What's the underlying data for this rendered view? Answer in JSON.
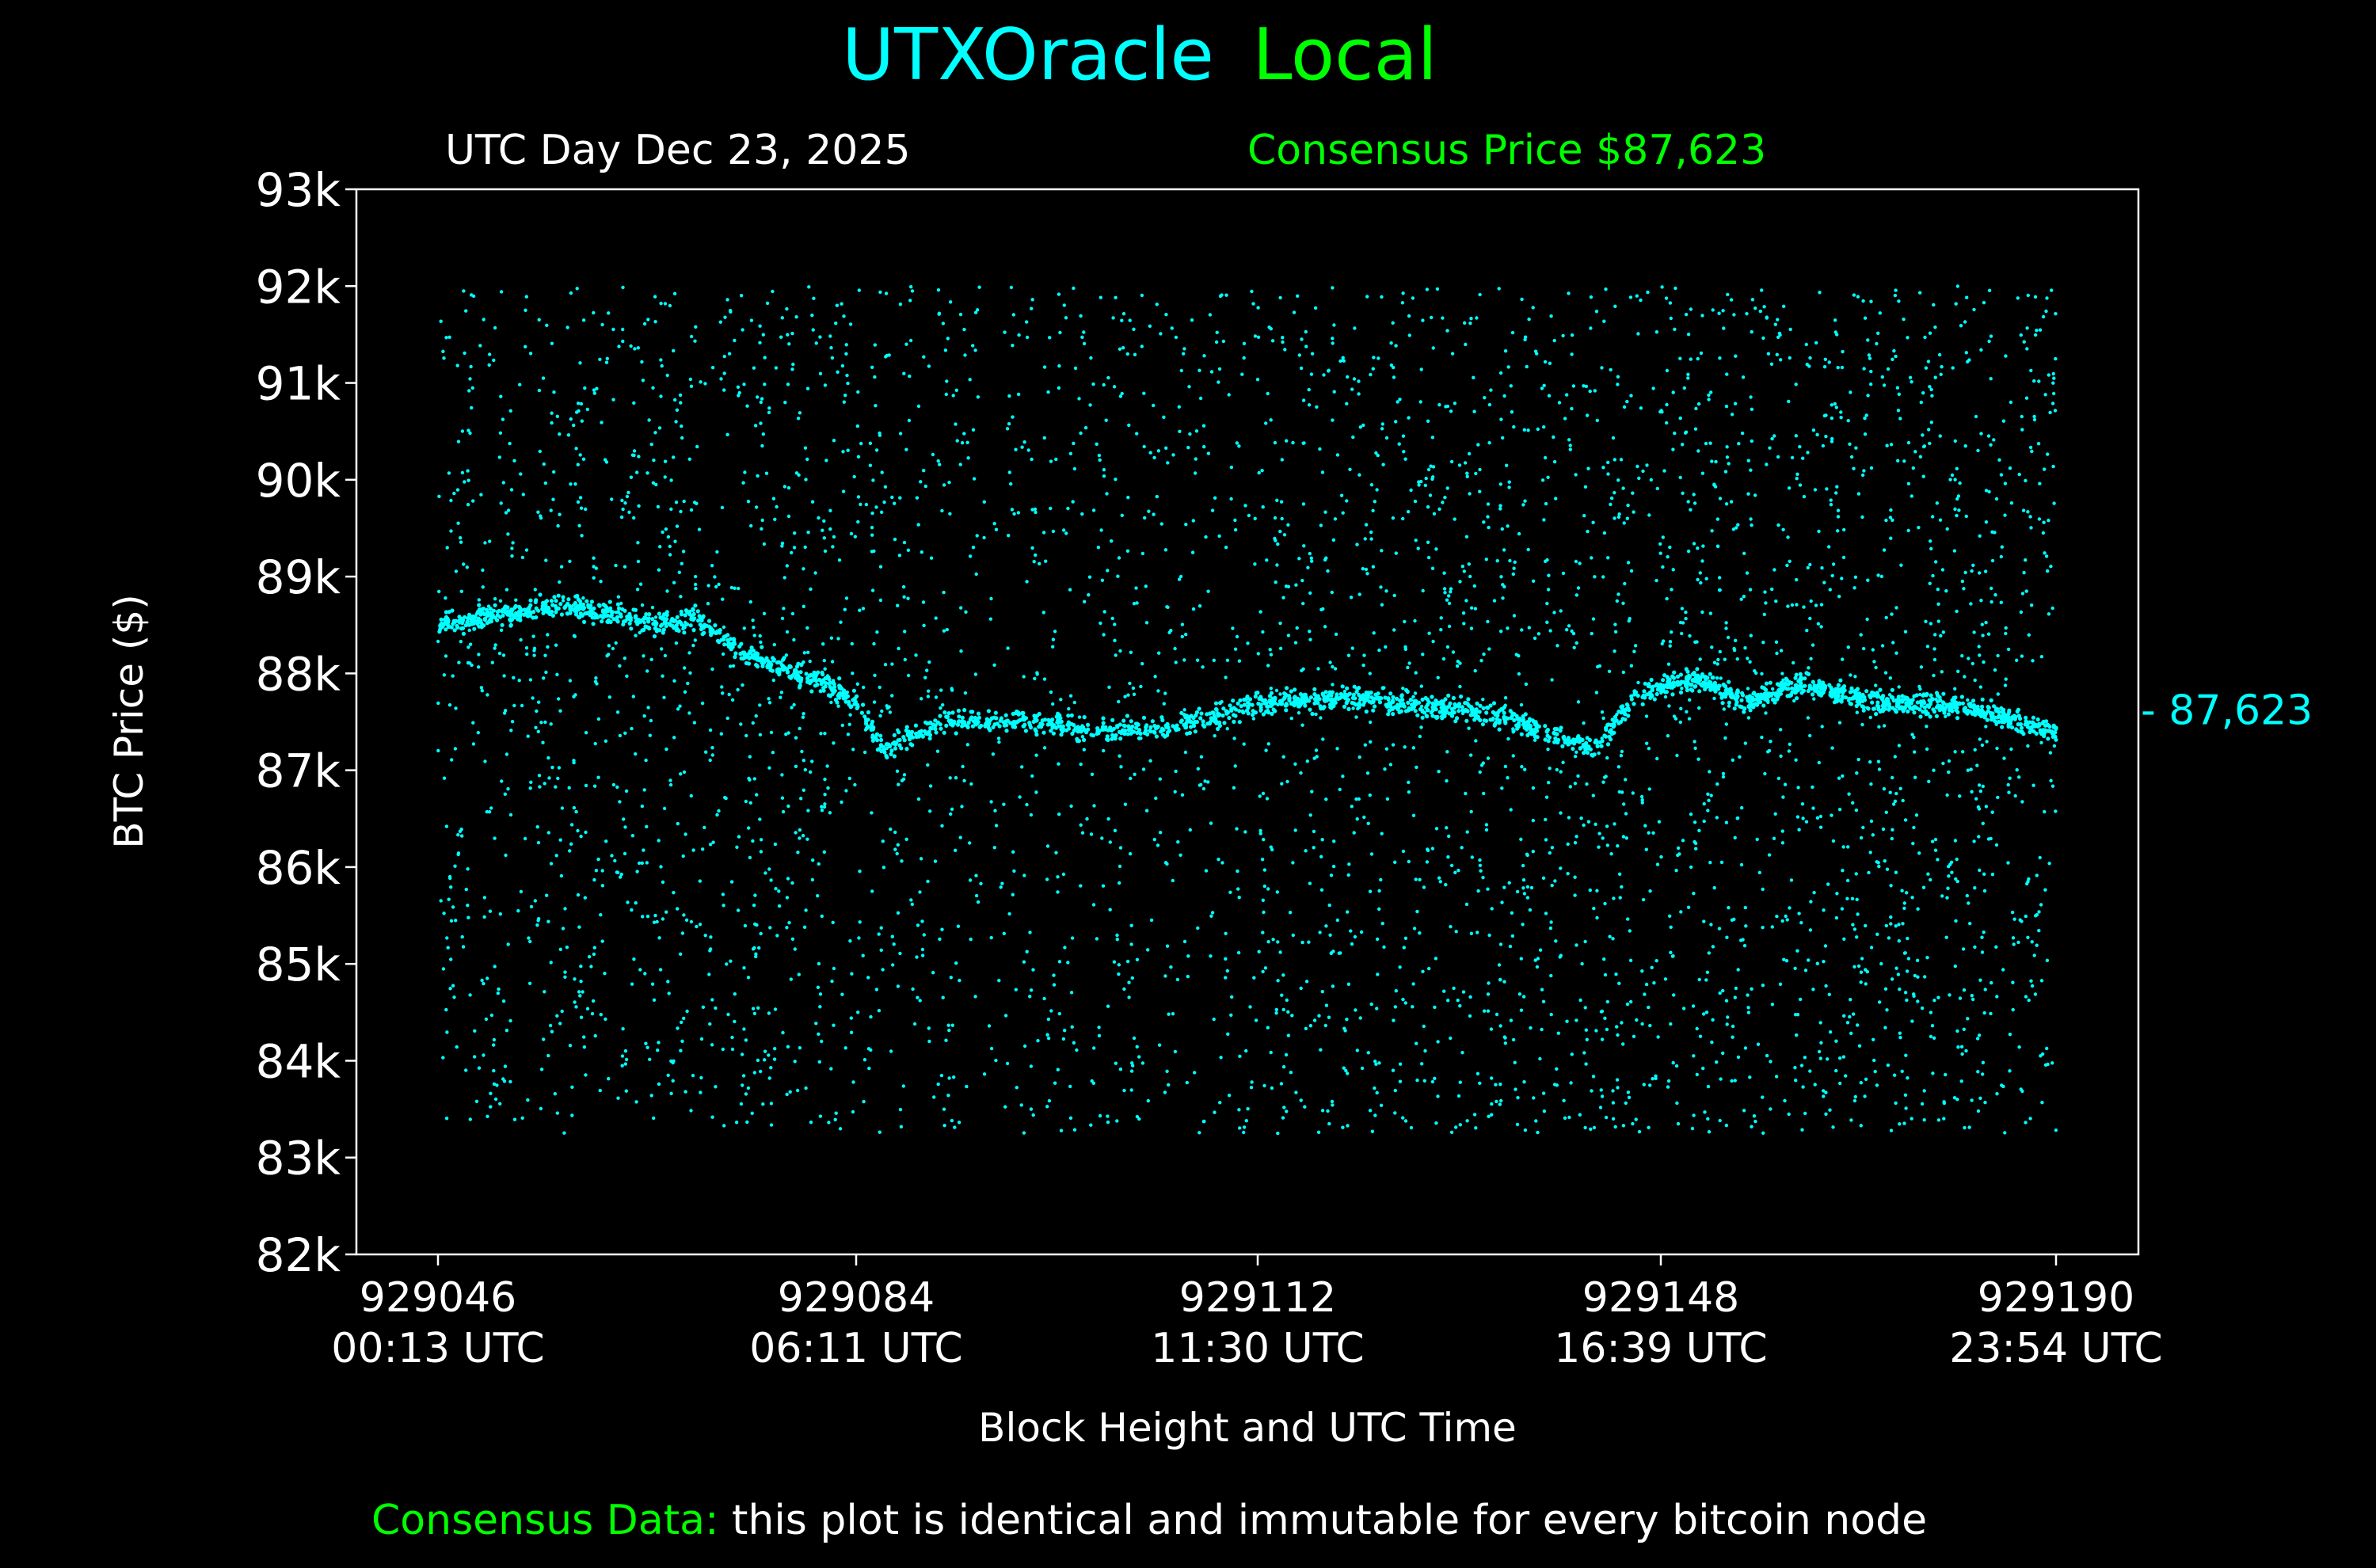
{
  "title": {
    "part1": "UTXOracle",
    "part2": "Local",
    "color1": "#00ffff",
    "color2": "#00ff00"
  },
  "subtitle_left": "UTC Day Dec 23, 2025",
  "subtitle_right": "Consensus Price $87,623",
  "footer": {
    "highlight": "Consensus Data:",
    "text": " this plot is identical and immutable for every bitcoin node"
  },
  "chart_data": {
    "type": "scatter",
    "title": "UTXOracle Local",
    "xlabel": "Block Height and UTC Time",
    "ylabel": "BTC Price ($)",
    "ylim": [
      82000,
      93000
    ],
    "yticks": [
      82000,
      83000,
      84000,
      85000,
      86000,
      87000,
      88000,
      89000,
      90000,
      91000,
      92000,
      93000
    ],
    "ytick_labels": [
      "82k",
      "83k",
      "84k",
      "85k",
      "86k",
      "87k",
      "88k",
      "89k",
      "90k",
      "91k",
      "92k",
      "93k"
    ],
    "xticks": [
      {
        "block": 929046,
        "block_label": "929046",
        "time": "00:13 UTC"
      },
      {
        "block": 929084,
        "block_label": "929084",
        "time": "06:11 UTC"
      },
      {
        "block": 929112,
        "block_label": "929112",
        "time": "11:30 UTC"
      },
      {
        "block": 929148,
        "block_label": "929148",
        "time": "16:39 UTC"
      },
      {
        "block": 929190,
        "block_label": "929190",
        "time": "23:54 UTC"
      }
    ],
    "consensus_price": 87623,
    "consensus_label": "- 87,623",
    "point_color": "#00ffff",
    "scatter_range": {
      "ymin": 83250,
      "ymax": 92000
    },
    "price_trace": [
      [
        929046,
        88500
      ],
      [
        929057,
        88700
      ],
      [
        929067,
        88500
      ],
      [
        929069,
        88600
      ],
      [
        929074,
        88200
      ],
      [
        929081,
        87900
      ],
      [
        929084,
        87700
      ],
      [
        929086,
        87200
      ],
      [
        929090,
        87500
      ],
      [
        929096,
        87500
      ],
      [
        929102,
        87400
      ],
      [
        929108,
        87500
      ],
      [
        929112,
        87700
      ],
      [
        929121,
        87750
      ],
      [
        929132,
        87600
      ],
      [
        929138,
        87400
      ],
      [
        929142,
        87200
      ],
      [
        929146,
        87800
      ],
      [
        929152,
        87950
      ],
      [
        929157,
        87700
      ],
      [
        929163,
        87900
      ],
      [
        929171,
        87700
      ],
      [
        929181,
        87650
      ],
      [
        929186,
        87500
      ],
      [
        929190,
        87400
      ]
    ],
    "grid": false
  }
}
